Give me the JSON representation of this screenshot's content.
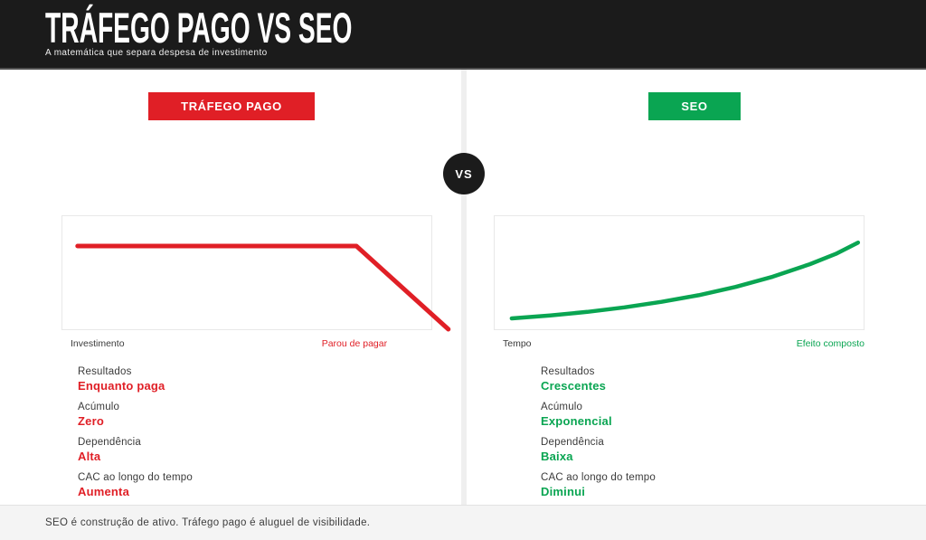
{
  "header": {
    "title": "TRÁFEGO PAGO VS SEO",
    "subtitle": "A matemática que separa despesa de investimento"
  },
  "vs_badge": "VS",
  "colors": {
    "red": "#E01F26",
    "green": "#0AA552",
    "black": "#1B1B1B"
  },
  "columns": {
    "left": {
      "badge": "TRÁFEGO PAGO",
      "stats": [
        {
          "label": "Resultados",
          "value": "Enquanto paga"
        },
        {
          "label": "Acúmulo",
          "value": "Zero"
        },
        {
          "label": "Dependência",
          "value": "Alta"
        },
        {
          "label": "CAC ao longo do tempo",
          "value": "Aumenta"
        }
      ]
    },
    "right": {
      "badge": "SEO",
      "stats": [
        {
          "label": "Resultados",
          "value": "Crescentes"
        },
        {
          "label": "Acúmulo",
          "value": "Exponencial"
        },
        {
          "label": "Dependência",
          "value": "Baixa"
        },
        {
          "label": "CAC ao longo do tempo",
          "value": "Diminui"
        }
      ]
    }
  },
  "chart_data": [
    {
      "type": "line",
      "series_name": "Tráfego pago",
      "xlabel": "Investimento",
      "annotation": "Parou de pagar",
      "color": "#E01F26",
      "stroke_width": 5,
      "xlim": [
        0,
        1
      ],
      "ylim": [
        0,
        1
      ],
      "grid": false,
      "legend": false,
      "points": [
        [
          0.041,
          0.74
        ],
        [
          0.793,
          0.74
        ],
        [
          1.041,
          0.016
        ]
      ]
    },
    {
      "type": "line",
      "series_name": "SEO",
      "xlabel": "Tempo",
      "annotation": "Efeito composto",
      "color": "#0AA552",
      "stroke_width": 4.5,
      "xlim": [
        0,
        1
      ],
      "ylim": [
        0,
        1
      ],
      "grid": false,
      "legend": false,
      "points": [
        [
          0.046,
          0.11
        ],
        [
          0.15,
          0.136
        ],
        [
          0.25,
          0.167
        ],
        [
          0.35,
          0.206
        ],
        [
          0.45,
          0.254
        ],
        [
          0.55,
          0.312
        ],
        [
          0.65,
          0.384
        ],
        [
          0.75,
          0.473
        ],
        [
          0.85,
          0.582
        ],
        [
          0.92,
          0.672
        ],
        [
          0.98,
          0.77
        ]
      ]
    }
  ],
  "footer": {
    "text": "SEO é construção de ativo. Tráfego pago é aluguel de visibilidade."
  }
}
